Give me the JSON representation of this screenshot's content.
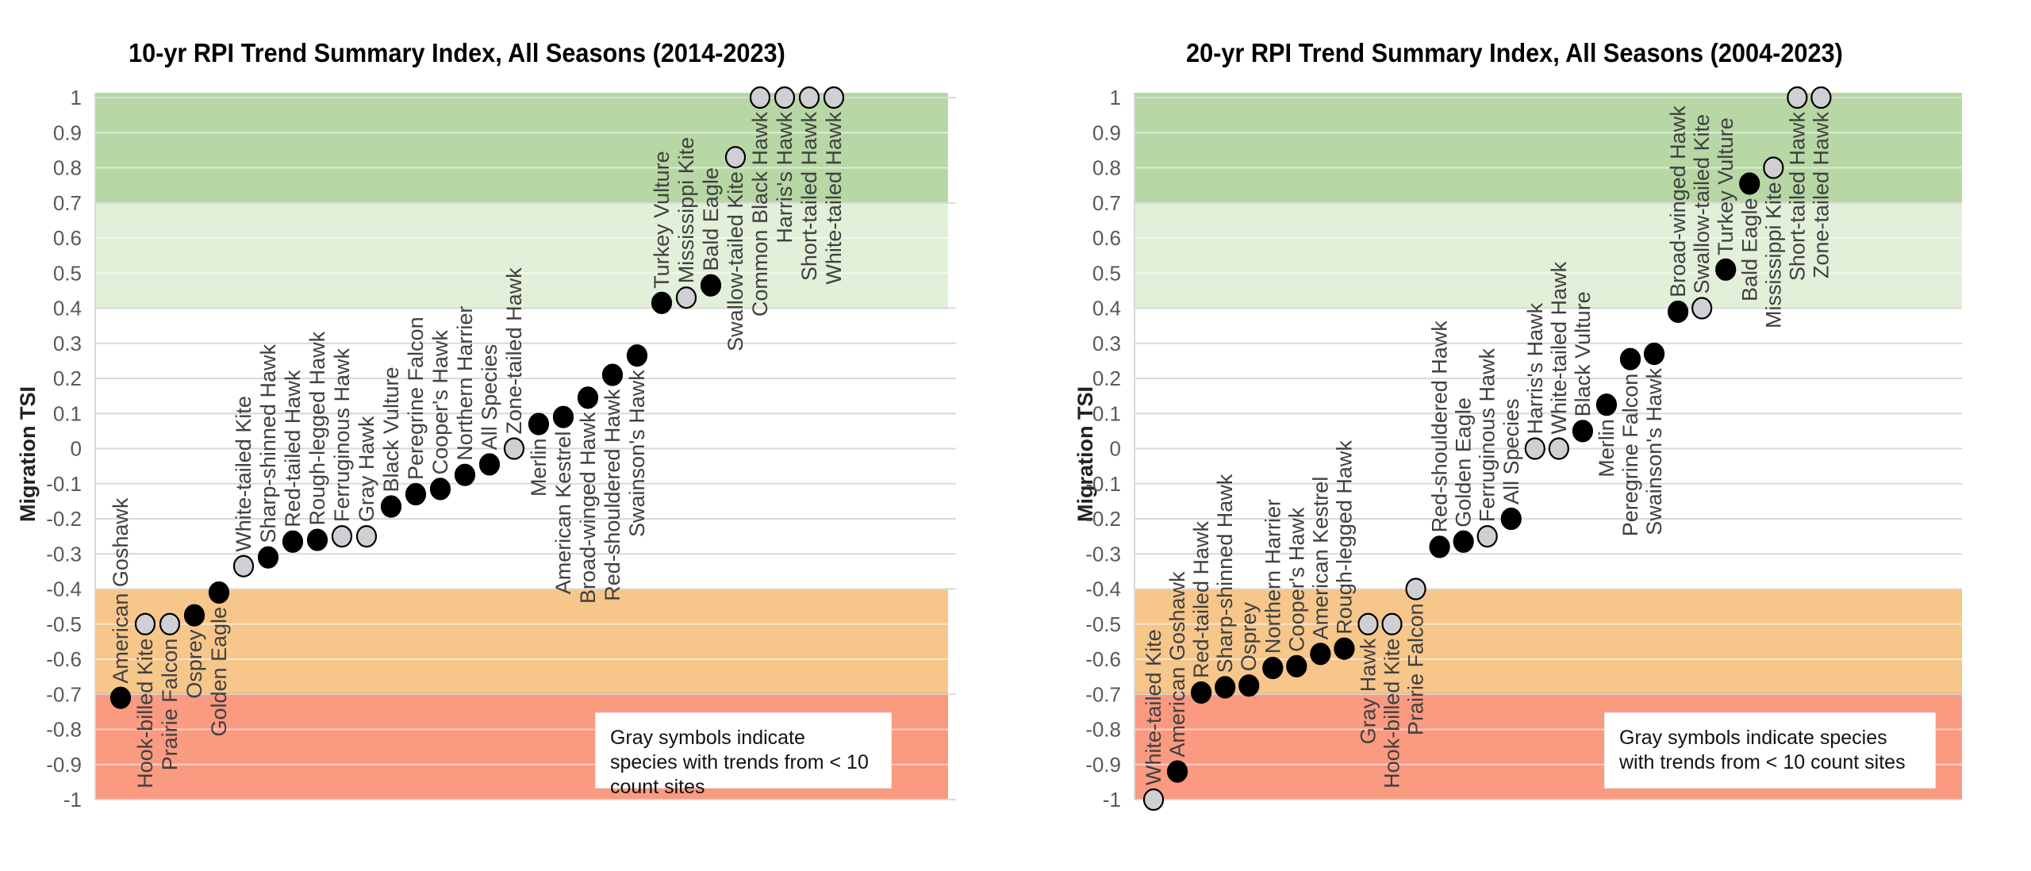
{
  "colors": {
    "band_strong_increase": "#b7d7a5",
    "band_moderate_increase": "#e2efd9",
    "band_moderate_decrease": "#f6c68a",
    "band_strong_decrease": "#fa9a81",
    "band_divider": "#f08a4b",
    "gridline": "#d9d9d9",
    "marker_black": "#000000",
    "marker_gray": "#d0cfd4",
    "marker_stroke": "#000000"
  },
  "legend_note": "Gray symbols indicate species with trends from < 10 count sites",
  "chart_data": [
    {
      "type": "scatter",
      "title": "10-yr RPI Trend Summary Index, All Seasons (2014-2023)",
      "xlabel": "",
      "ylabel": "Migration TSI",
      "ylim": [
        -1,
        1
      ],
      "yticks": [
        "1",
        "0.9",
        "0.8",
        "0.7",
        "0.6",
        "0.5",
        "0.4",
        "0.3",
        "0.2",
        "0.1",
        "0",
        "-0.1",
        "-0.2",
        "-0.3",
        "-0.4",
        "-0.5",
        "-0.6",
        "-0.7",
        "-0.8",
        "-0.9",
        "-1"
      ],
      "grid": true,
      "bands": [
        {
          "from": 0.7,
          "to": 1.0,
          "color_key": "band_strong_increase"
        },
        {
          "from": 0.4,
          "to": 0.7,
          "color_key": "band_moderate_increase"
        },
        {
          "from": -0.7,
          "to": -0.4,
          "color_key": "band_moderate_decrease"
        },
        {
          "from": -1.0,
          "to": -0.7,
          "color_key": "band_strong_decrease"
        }
      ],
      "annotation": "Gray symbols indicate species with trends from < 10 count sites",
      "annotation_position": "bottom-right",
      "points": [
        {
          "name": "American Goshawk",
          "value": -0.71,
          "gray": false,
          "label_side": "above"
        },
        {
          "name": "Hook-billed Kite",
          "value": -0.5,
          "gray": true,
          "label_side": "below"
        },
        {
          "name": "Prairie Falcon",
          "value": -0.5,
          "gray": true,
          "label_side": "below"
        },
        {
          "name": "Osprey",
          "value": -0.475,
          "gray": false,
          "label_side": "below"
        },
        {
          "name": "Golden Eagle",
          "value": -0.41,
          "gray": false,
          "label_side": "below"
        },
        {
          "name": "White-tailed Kite",
          "value": -0.335,
          "gray": true,
          "label_side": "above"
        },
        {
          "name": "Sharp-shinned Hawk",
          "value": -0.31,
          "gray": false,
          "label_side": "above"
        },
        {
          "name": "Red-tailed Hawk",
          "value": -0.265,
          "gray": false,
          "label_side": "above"
        },
        {
          "name": "Rough-legged Hawk",
          "value": -0.26,
          "gray": false,
          "label_side": "above"
        },
        {
          "name": "Ferruginous Hawk",
          "value": -0.25,
          "gray": true,
          "label_side": "above"
        },
        {
          "name": "Gray Hawk",
          "value": -0.25,
          "gray": true,
          "label_side": "above"
        },
        {
          "name": "Black Vulture",
          "value": -0.165,
          "gray": false,
          "label_side": "above"
        },
        {
          "name": "Peregrine Falcon",
          "value": -0.13,
          "gray": false,
          "label_side": "above"
        },
        {
          "name": "Cooper's Hawk",
          "value": -0.115,
          "gray": false,
          "label_side": "above"
        },
        {
          "name": "Northern Harrier",
          "value": -0.075,
          "gray": false,
          "label_side": "above"
        },
        {
          "name": "All Species",
          "value": -0.045,
          "gray": false,
          "label_side": "above"
        },
        {
          "name": "Zone-tailed Hawk",
          "value": 0.0,
          "gray": true,
          "label_side": "above"
        },
        {
          "name": "Merlin",
          "value": 0.07,
          "gray": false,
          "label_side": "below"
        },
        {
          "name": "American Kestrel",
          "value": 0.09,
          "gray": false,
          "label_side": "below"
        },
        {
          "name": "Broad-winged Hawk",
          "value": 0.145,
          "gray": false,
          "label_side": "below"
        },
        {
          "name": "Red-shouldered Hawk",
          "value": 0.21,
          "gray": false,
          "label_side": "below"
        },
        {
          "name": "Swainson's Hawk",
          "value": 0.265,
          "gray": false,
          "label_side": "below"
        },
        {
          "name": "Turkey Vulture",
          "value": 0.415,
          "gray": false,
          "label_side": "above"
        },
        {
          "name": "Mississippi Kite",
          "value": 0.43,
          "gray": true,
          "label_side": "above"
        },
        {
          "name": "Bald Eagle",
          "value": 0.465,
          "gray": false,
          "label_side": "above"
        },
        {
          "name": "Swallow-tailed Kite",
          "value": 0.83,
          "gray": true,
          "label_side": "below"
        },
        {
          "name": "Common Black Hawk",
          "value": 1.0,
          "gray": true,
          "label_side": "below"
        },
        {
          "name": "Harris's Hawk",
          "value": 1.0,
          "gray": true,
          "label_side": "below"
        },
        {
          "name": "Short-tailed Hawk",
          "value": 1.0,
          "gray": true,
          "label_side": "below"
        },
        {
          "name": "White-tailed Hawk",
          "value": 1.0,
          "gray": true,
          "label_side": "below"
        }
      ]
    },
    {
      "type": "scatter",
      "title": "20-yr RPI Trend Summary Index, All Seasons (2004-2023)",
      "xlabel": "",
      "ylabel": "Migration TSI",
      "ylim": [
        -1,
        1
      ],
      "yticks": [
        "1",
        "0.9",
        "0.8",
        "0.7",
        "0.6",
        "0.5",
        "0.4",
        "0.3",
        "0.2",
        "0.1",
        "0",
        "-0.1",
        "-0.2",
        "-0.3",
        "-0.4",
        "-0.5",
        "-0.6",
        "-0.7",
        "-0.8",
        "-0.9",
        "-1"
      ],
      "grid": true,
      "bands": [
        {
          "from": 0.7,
          "to": 1.0,
          "color_key": "band_strong_increase"
        },
        {
          "from": 0.4,
          "to": 0.7,
          "color_key": "band_moderate_increase"
        },
        {
          "from": -0.7,
          "to": -0.4,
          "color_key": "band_moderate_decrease"
        },
        {
          "from": -1.0,
          "to": -0.7,
          "color_key": "band_strong_decrease"
        }
      ],
      "annotation": "Gray symbols indicate species with trends from < 10 count sites",
      "annotation_position": "bottom-right",
      "points": [
        {
          "name": "White-tailed Kite",
          "value": -1.0,
          "gray": true,
          "label_side": "above"
        },
        {
          "name": "American Goshawk",
          "value": -0.92,
          "gray": false,
          "label_side": "above"
        },
        {
          "name": "Red-tailed Hawk",
          "value": -0.695,
          "gray": false,
          "label_side": "above"
        },
        {
          "name": "Sharp-shinned Hawk",
          "value": -0.68,
          "gray": false,
          "label_side": "above"
        },
        {
          "name": "Osprey",
          "value": -0.675,
          "gray": false,
          "label_side": "above"
        },
        {
          "name": "Northern Harrier",
          "value": -0.625,
          "gray": false,
          "label_side": "above"
        },
        {
          "name": "Cooper's Hawk",
          "value": -0.62,
          "gray": false,
          "label_side": "above"
        },
        {
          "name": "American Kestrel",
          "value": -0.585,
          "gray": false,
          "label_side": "above"
        },
        {
          "name": "Rough-legged Hawk",
          "value": -0.57,
          "gray": false,
          "label_side": "above"
        },
        {
          "name": "Gray Hawk",
          "value": -0.5,
          "gray": true,
          "label_side": "below"
        },
        {
          "name": "Hook-billed Kite",
          "value": -0.5,
          "gray": true,
          "label_side": "below"
        },
        {
          "name": "Prairie Falcon",
          "value": -0.4,
          "gray": true,
          "label_side": "below"
        },
        {
          "name": "Red-shouldered Hawk",
          "value": -0.28,
          "gray": false,
          "label_side": "above"
        },
        {
          "name": "Golden Eagle",
          "value": -0.265,
          "gray": false,
          "label_side": "above"
        },
        {
          "name": "Ferruginous Hawk",
          "value": -0.25,
          "gray": true,
          "label_side": "above"
        },
        {
          "name": "All Species",
          "value": -0.2,
          "gray": false,
          "label_side": "above"
        },
        {
          "name": "Harris's Hawk",
          "value": 0.0,
          "gray": true,
          "label_side": "above"
        },
        {
          "name": "White-tailed Hawk",
          "value": 0.0,
          "gray": true,
          "label_side": "above"
        },
        {
          "name": "Black Vulture",
          "value": 0.05,
          "gray": false,
          "label_side": "above"
        },
        {
          "name": "Merlin",
          "value": 0.125,
          "gray": false,
          "label_side": "below"
        },
        {
          "name": "Peregrine Falcon",
          "value": 0.255,
          "gray": false,
          "label_side": "below"
        },
        {
          "name": "Swainson's Hawk",
          "value": 0.27,
          "gray": false,
          "label_side": "below"
        },
        {
          "name": "Broad-winged Hawk",
          "value": 0.39,
          "gray": false,
          "label_side": "above"
        },
        {
          "name": "Swallow-tailed Kite",
          "value": 0.4,
          "gray": true,
          "label_side": "above"
        },
        {
          "name": "Turkey Vulture",
          "value": 0.51,
          "gray": false,
          "label_side": "above"
        },
        {
          "name": "Bald Eagle",
          "value": 0.755,
          "gray": false,
          "label_side": "below"
        },
        {
          "name": "Mississippi Kite",
          "value": 0.8,
          "gray": true,
          "label_side": "below"
        },
        {
          "name": "Short-tailed Hawk",
          "value": 1.0,
          "gray": true,
          "label_side": "below"
        },
        {
          "name": "Zone-tailed Hawk",
          "value": 1.0,
          "gray": true,
          "label_side": "below"
        }
      ]
    }
  ]
}
